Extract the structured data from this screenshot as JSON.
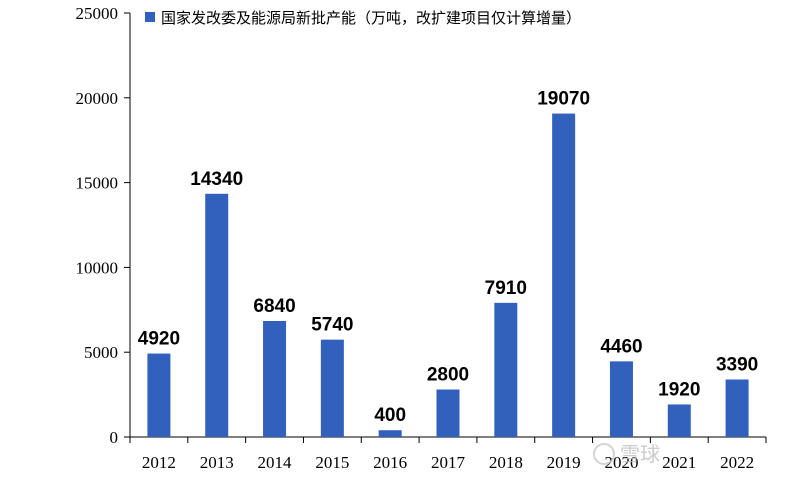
{
  "chart_data": {
    "type": "bar",
    "title": "",
    "xlabel": "",
    "ylabel": "",
    "legend": {
      "position": "top",
      "entries": [
        "国家发改委及能源局新批产能（万吨，改扩建项目仅计算增量）"
      ]
    },
    "categories": [
      "2012",
      "2013",
      "2014",
      "2015",
      "2016",
      "2017",
      "2018",
      "2019",
      "2020",
      "2021",
      "2022"
    ],
    "series": [
      {
        "name": "国家发改委及能源局新批产能（万吨，改扩建项目仅计算增量）",
        "values": [
          4920,
          14340,
          6840,
          5740,
          400,
          2800,
          7910,
          19070,
          4460,
          1920,
          3390
        ],
        "color": "#3160bd"
      }
    ],
    "ylim": [
      0,
      25000
    ],
    "yticks": [
      0,
      5000,
      10000,
      15000,
      20000,
      25000
    ],
    "grid": false,
    "data_labels": true
  },
  "watermark": "雪球"
}
